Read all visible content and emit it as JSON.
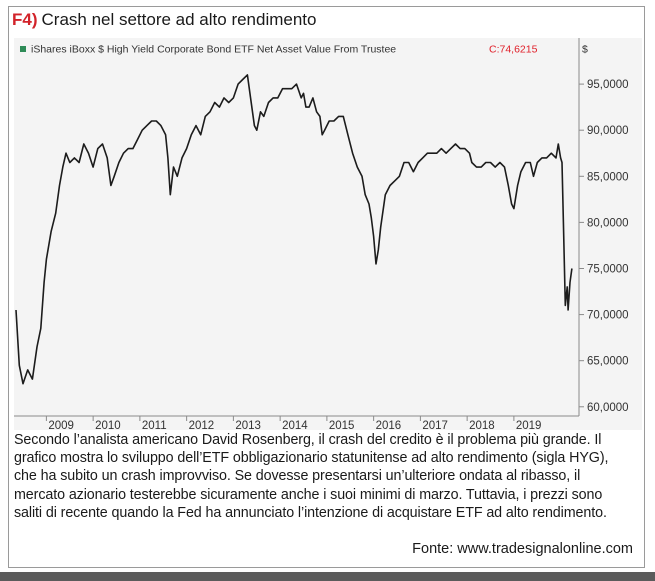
{
  "figure": {
    "number": "F4)",
    "title": "Crash nel settore ad alto rendimento"
  },
  "caption": "Secondo l’analista americano David Rosenberg, il crash del credito è il problema più grande. Il grafico mostra lo sviluppo dell’ETF obbligazionario statunitense ad alto rendimento (sigla HYG), che ha subito un crash improvviso. Se dovesse presentarsi un’ulteriore ondata al ribasso, il mercato azionario testerebbe sicuramente anche i suoi minimi di marzo. Tuttavia, i prezzi sono saliti di recente quando la Fed ha annunciato l’intenzione di acquistare ETF ad alto rendimento.",
  "source": "Fonte: www.tradesignalonline.com",
  "colors": {
    "title_number": "#d2232a",
    "legend_marker": "#2e8b57",
    "last_value": "#e0202a",
    "line": "#1c1c1c",
    "background": "#f4f4f4"
  },
  "chart_data": {
    "type": "line",
    "legend": {
      "label": "iShares iBoxx $ High Yield Corporate Bond ETF Net Asset Value From Trustee",
      "last_value": "C:74,6215",
      "placement": "top-left"
    },
    "y_unit": "$",
    "ylim": [
      59,
      100
    ],
    "y_ticks": [
      "95,0000",
      "90,0000",
      "85,0000",
      "80,0000",
      "75,0000",
      "70,0000",
      "65,0000",
      "60,0000"
    ],
    "y_tick_values": [
      95,
      90,
      85,
      80,
      75,
      70,
      65,
      60
    ],
    "xlim": [
      2008.35,
      2020.35
    ],
    "x_ticks": [
      "2009",
      "2010",
      "2011",
      "2012",
      "2013",
      "2014",
      "2015",
      "2016",
      "2017",
      "2018",
      "2019"
    ],
    "x_tick_values": [
      2009,
      2010,
      2011,
      2012,
      2013,
      2014,
      2015,
      2016,
      2017,
      2018,
      2019
    ],
    "grid": false,
    "series": [
      {
        "x": [
          2008.35,
          2008.42,
          2008.5,
          2008.6,
          2008.7,
          2008.8,
          2008.88,
          2008.95,
          2009.0,
          2009.1,
          2009.2,
          2009.28,
          2009.35,
          2009.42,
          2009.5,
          2009.6,
          2009.7,
          2009.8,
          2009.9,
          2010.0,
          2010.1,
          2010.2,
          2010.3,
          2010.38,
          2010.45,
          2010.55,
          2010.65,
          2010.75,
          2010.85,
          2010.95,
          2011.05,
          2011.15,
          2011.25,
          2011.35,
          2011.45,
          2011.55,
          2011.6,
          2011.65,
          2011.72,
          2011.8,
          2011.9,
          2012.0,
          2012.1,
          2012.2,
          2012.3,
          2012.4,
          2012.5,
          2012.6,
          2012.7,
          2012.8,
          2012.9,
          2013.0,
          2013.1,
          2013.2,
          2013.3,
          2013.38,
          2013.45,
          2013.5,
          2013.58,
          2013.65,
          2013.75,
          2013.85,
          2013.95,
          2014.05,
          2014.15,
          2014.25,
          2014.35,
          2014.45,
          2014.5,
          2014.55,
          2014.62,
          2014.7,
          2014.78,
          2014.85,
          2014.9,
          2014.95,
          2015.05,
          2015.15,
          2015.25,
          2015.35,
          2015.45,
          2015.55,
          2015.65,
          2015.75,
          2015.82,
          2015.9,
          2015.95,
          2016.0,
          2016.05,
          2016.1,
          2016.15,
          2016.25,
          2016.35,
          2016.45,
          2016.55,
          2016.65,
          2016.75,
          2016.85,
          2016.95,
          2017.05,
          2017.15,
          2017.25,
          2017.35,
          2017.45,
          2017.55,
          2017.65,
          2017.75,
          2017.85,
          2017.95,
          2018.05,
          2018.1,
          2018.2,
          2018.3,
          2018.4,
          2018.5,
          2018.6,
          2018.7,
          2018.8,
          2018.88,
          2018.95,
          2019.0,
          2019.08,
          2019.15,
          2019.25,
          2019.35,
          2019.42,
          2019.5,
          2019.6,
          2019.7,
          2019.8,
          2019.9,
          2019.95,
          2020.0,
          2020.03,
          2020.06,
          2020.1,
          2020.14,
          2020.16,
          2020.2,
          2020.24
        ],
        "y": [
          70.5,
          64.5,
          62.5,
          64.0,
          63.0,
          66.5,
          68.5,
          73.5,
          76.0,
          79.0,
          81.0,
          84.0,
          86.0,
          87.5,
          86.5,
          87.0,
          86.5,
          88.5,
          87.5,
          86.0,
          88.0,
          88.5,
          87.0,
          84.0,
          85.0,
          86.5,
          87.5,
          88.0,
          88.0,
          89.0,
          90.0,
          90.5,
          91.0,
          91.0,
          90.5,
          89.5,
          87.0,
          83.0,
          86.0,
          85.0,
          87.0,
          88.0,
          89.5,
          90.5,
          89.5,
          91.5,
          92.0,
          93.0,
          92.5,
          93.5,
          93.0,
          93.5,
          95.0,
          95.5,
          96.0,
          93.0,
          90.5,
          90.0,
          92.0,
          91.5,
          93.0,
          93.5,
          93.5,
          94.5,
          94.5,
          94.5,
          95.0,
          93.5,
          94.0,
          92.5,
          92.5,
          93.5,
          92.0,
          91.5,
          89.5,
          90.0,
          91.0,
          91.0,
          91.5,
          91.5,
          89.5,
          87.5,
          86.0,
          85.0,
          83.0,
          82.0,
          80.5,
          78.5,
          75.5,
          77.0,
          79.5,
          83.0,
          84.0,
          84.5,
          85.0,
          86.5,
          86.5,
          85.5,
          86.5,
          87.0,
          87.5,
          87.5,
          87.5,
          88.0,
          87.5,
          88.0,
          88.5,
          88.0,
          88.0,
          87.5,
          86.5,
          86.0,
          86.0,
          86.5,
          86.5,
          86.0,
          86.5,
          86.0,
          84.0,
          82.0,
          81.5,
          84.0,
          85.5,
          86.5,
          86.5,
          85.0,
          86.5,
          87.0,
          87.0,
          87.5,
          87.0,
          88.5,
          87.0,
          86.5,
          80.0,
          71.0,
          73.0,
          70.5,
          73.5,
          75.0
        ]
      }
    ]
  }
}
